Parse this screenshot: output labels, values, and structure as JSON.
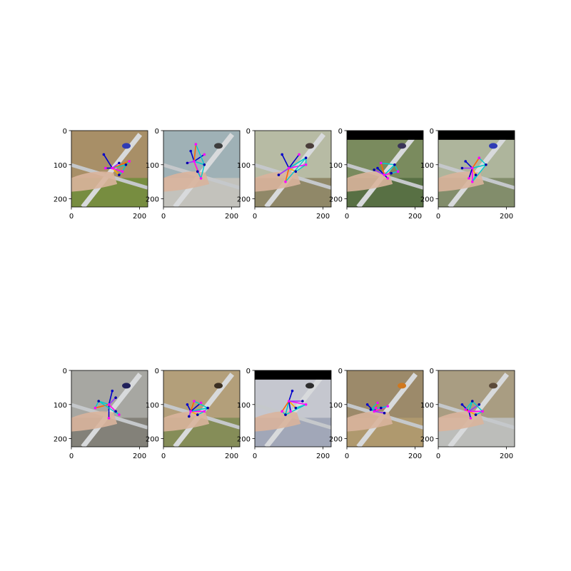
{
  "chart_data": {
    "type": "image_grid",
    "rows": 2,
    "cols": 5,
    "panels": [
      {
        "xticks": [
          0,
          200
        ],
        "yticks": [
          0,
          100,
          200
        ],
        "xlim": [
          0,
          224
        ],
        "ylim": [
          224,
          0
        ],
        "scene": {
          "bg": "#a88f67",
          "top_black": false,
          "accent": "#2f3bb5",
          "floor": "#6f8d3a"
        },
        "keypoints": [
          [
            95,
            70
          ],
          [
            120,
            110
          ],
          [
            140,
            130
          ],
          [
            150,
            120
          ],
          [
            160,
            100
          ],
          [
            170,
            90
          ],
          [
            140,
            95
          ],
          [
            100,
            110
          ]
        ],
        "bones": [
          "#0000cc",
          "#00aa00",
          "#ffaa00",
          "#ff00ff",
          "#00cccc",
          "#ff6600",
          "#9933ff"
        ]
      },
      {
        "xticks": [
          0,
          200
        ],
        "yticks": [
          0,
          100,
          200
        ],
        "xlim": [
          0,
          224
        ],
        "ylim": [
          224,
          0
        ],
        "scene": {
          "bg": "#9fb1b6",
          "top_black": false,
          "accent": "#3d3d3d",
          "floor": "#c9c6bd"
        },
        "keypoints": [
          [
            80,
            60
          ],
          [
            90,
            90
          ],
          [
            100,
            120
          ],
          [
            110,
            140
          ],
          [
            120,
            100
          ],
          [
            95,
            40
          ],
          [
            70,
            95
          ],
          [
            120,
            70
          ]
        ],
        "bones": [
          "#0000cc",
          "#00aa00",
          "#ffaa00",
          "#ff00ff",
          "#00cccc",
          "#ff6600",
          "#9933ff"
        ]
      },
      {
        "xticks": [
          0,
          200
        ],
        "yticks": [
          0,
          100,
          200
        ],
        "xlim": [
          0,
          224
        ],
        "ylim": [
          224,
          0
        ],
        "scene": {
          "bg": "#b7bba4",
          "top_black": false,
          "accent": "#4a3d3a",
          "floor": "#8a7f5e"
        },
        "keypoints": [
          [
            80,
            70
          ],
          [
            100,
            110
          ],
          [
            120,
            120
          ],
          [
            150,
            100
          ],
          [
            150,
            80
          ],
          [
            90,
            150
          ],
          [
            70,
            130
          ],
          [
            130,
            70
          ]
        ],
        "bones": [
          "#0000cc",
          "#00aa00",
          "#ffaa00",
          "#ff00ff",
          "#00cccc",
          "#ff6600",
          "#9933ff"
        ]
      },
      {
        "xticks": [
          0,
          200
        ],
        "yticks": [
          0,
          100,
          200
        ],
        "xlim": [
          0,
          224
        ],
        "ylim": [
          224,
          0
        ],
        "scene": {
          "bg": "#7a8b5e",
          "top_black": true,
          "accent": "#3a3458",
          "floor": "#526b40"
        },
        "keypoints": [
          [
            90,
            110
          ],
          [
            110,
            130
          ],
          [
            130,
            125
          ],
          [
            150,
            120
          ],
          [
            140,
            100
          ],
          [
            100,
            95
          ],
          [
            80,
            115
          ],
          [
            120,
            140
          ]
        ],
        "bones": [
          "#0000cc",
          "#00aa00",
          "#ffaa00",
          "#ff00ff",
          "#00cccc",
          "#ff6600",
          "#9933ff"
        ]
      },
      {
        "xticks": [
          0,
          200
        ],
        "yticks": [
          0,
          100,
          200
        ],
        "xlim": [
          0,
          224
        ],
        "ylim": [
          224,
          0
        ],
        "scene": {
          "bg": "#aeb59c",
          "top_black": true,
          "accent": "#2f3bb5",
          "floor": "#7a8663"
        },
        "keypoints": [
          [
            80,
            90
          ],
          [
            100,
            110
          ],
          [
            110,
            130
          ],
          [
            100,
            150
          ],
          [
            140,
            100
          ],
          [
            120,
            80
          ],
          [
            70,
            110
          ],
          [
            90,
            140
          ]
        ],
        "bones": [
          "#0000cc",
          "#00aa00",
          "#ffaa00",
          "#ff00ff",
          "#00cccc",
          "#ff6600",
          "#9933ff"
        ]
      },
      {
        "xticks": [
          0,
          200
        ],
        "yticks": [
          0,
          100,
          200
        ],
        "xlim": [
          0,
          224
        ],
        "ylim": [
          224,
          0
        ],
        "scene": {
          "bg": "#a7a7a2",
          "top_black": false,
          "accent": "#20205a",
          "floor": "#7d7a72"
        },
        "keypoints": [
          [
            120,
            60
          ],
          [
            110,
            100
          ],
          [
            130,
            120
          ],
          [
            140,
            130
          ],
          [
            80,
            90
          ],
          [
            70,
            110
          ],
          [
            130,
            80
          ],
          [
            110,
            140
          ]
        ],
        "bones": [
          "#0000cc",
          "#00aa00",
          "#ffaa00",
          "#ff00ff",
          "#00cccc",
          "#ff6600",
          "#9933ff"
        ]
      },
      {
        "xticks": [
          0,
          200
        ],
        "yticks": [
          0,
          100,
          200
        ],
        "xlim": [
          0,
          224
        ],
        "ylim": [
          224,
          0
        ],
        "scene": {
          "bg": "#b39f7a",
          "top_black": false,
          "accent": "#3b2f22",
          "floor": "#7c8a52"
        },
        "keypoints": [
          [
            70,
            100
          ],
          [
            80,
            120
          ],
          [
            100,
            130
          ],
          [
            120,
            120
          ],
          [
            130,
            110
          ],
          [
            90,
            90
          ],
          [
            75,
            135
          ],
          [
            110,
            95
          ]
        ],
        "bones": [
          "#0000cc",
          "#00aa00",
          "#ffaa00",
          "#ff00ff",
          "#00cccc",
          "#ff6600",
          "#9933ff"
        ]
      },
      {
        "xticks": [
          0,
          200
        ],
        "yticks": [
          0,
          100,
          200
        ],
        "xlim": [
          0,
          224
        ],
        "ylim": [
          224,
          0
        ],
        "scene": {
          "bg": "#c5c7cf",
          "top_black": true,
          "accent": "#2d2d2d",
          "floor": "#9aa1b4"
        },
        "keypoints": [
          [
            110,
            60
          ],
          [
            100,
            90
          ],
          [
            120,
            110
          ],
          [
            150,
            100
          ],
          [
            90,
            130
          ],
          [
            80,
            120
          ],
          [
            140,
            90
          ],
          [
            105,
            120
          ]
        ],
        "bones": [
          "#0000cc",
          "#00aa00",
          "#ffaa00",
          "#ff00ff",
          "#00cccc",
          "#ff6600",
          "#9933ff"
        ]
      },
      {
        "xticks": [
          0,
          200
        ],
        "yticks": [
          0,
          100,
          200
        ],
        "xlim": [
          0,
          224
        ],
        "ylim": [
          224,
          0
        ],
        "scene": {
          "bg": "#9c8a6a",
          "top_black": false,
          "accent": "#d0781f",
          "floor": "#b39b6e"
        },
        "keypoints": [
          [
            60,
            100
          ],
          [
            80,
            120
          ],
          [
            100,
            110
          ],
          [
            120,
            105
          ],
          [
            70,
            115
          ],
          [
            90,
            95
          ],
          [
            110,
            125
          ],
          [
            85,
            110
          ]
        ],
        "bones": [
          "#0000cc",
          "#00aa00",
          "#ffaa00",
          "#ff00ff",
          "#00cccc",
          "#ff6600",
          "#9933ff"
        ]
      },
      {
        "xticks": [
          0,
          200
        ],
        "yticks": [
          0,
          100,
          200
        ],
        "xlim": [
          0,
          224
        ],
        "ylim": [
          224,
          0
        ],
        "scene": {
          "bg": "#a99d82",
          "top_black": false,
          "accent": "#5b4a3a",
          "floor": "#bfc3c4"
        },
        "keypoints": [
          [
            70,
            100
          ],
          [
            90,
            120
          ],
          [
            110,
            130
          ],
          [
            130,
            120
          ],
          [
            100,
            90
          ],
          [
            80,
            115
          ],
          [
            120,
            100
          ],
          [
            95,
            140
          ]
        ],
        "bones": [
          "#0000cc",
          "#00aa00",
          "#ffaa00",
          "#ff00ff",
          "#00cccc",
          "#ff6600",
          "#9933ff"
        ]
      }
    ]
  }
}
